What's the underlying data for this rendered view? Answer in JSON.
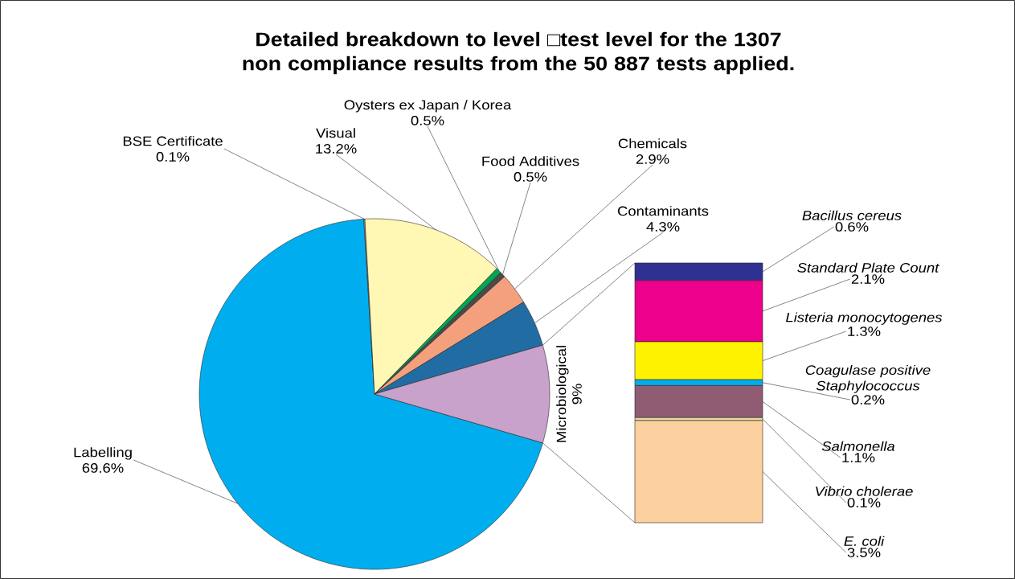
{
  "chart_data": [
    {
      "type": "pie",
      "title": "Detailed breakdown to level □test level for the 1307 non compliance results from the 50 887 tests applied.",
      "categories": [
        "Labelling",
        "BSE Certificate",
        "Visual",
        "Oysters ex Japan / Korea",
        "Food Additives",
        "Chemicals",
        "Contaminants",
        "Microbiological"
      ],
      "values": [
        69.6,
        0.1,
        13.2,
        0.5,
        0.5,
        2.9,
        4.3,
        9
      ],
      "value_labels": [
        "69.6%",
        "0.1%",
        "13.2%",
        "0.5%",
        "0.5%",
        "2.9%",
        "4.3%",
        "9%"
      ],
      "colors": [
        "#00aeef",
        "#a0a0a0",
        "#fff8b4",
        "#00a651",
        "#4a4a4a",
        "#f4a07c",
        "#226ca4",
        "#c8a2cb"
      ]
    },
    {
      "type": "bar",
      "stacked": true,
      "categories": [
        null
      ],
      "series": [
        {
          "name": "*E. coli*",
          "color": "#fdd09f",
          "values": [
            3.5
          ],
          "value_labels": [
            "3.5%"
          ]
        },
        {
          "name": "*Vibrio cholerae*",
          "color": "#e8dca0",
          "values": [
            0.1
          ],
          "value_labels": [
            "0.1%"
          ]
        },
        {
          "name": "*Salmonella*",
          "color": "#905c74",
          "values": [
            1.1
          ],
          "value_labels": [
            "1.1%"
          ]
        },
        {
          "name": "*Coagulase positive Staphylococcus*",
          "color": "#00aeef",
          "values": [
            0.2
          ],
          "value_labels": [
            "0.2%"
          ]
        },
        {
          "name": "*Listeria monocytogenes*",
          "color": "#fff200",
          "values": [
            1.3
          ],
          "value_labels": [
            "1.3%"
          ]
        },
        {
          "name": "*Standard Plate Count*",
          "color": "#ec008c",
          "values": [
            2.1
          ],
          "value_labels": [
            "2.1%"
          ]
        },
        {
          "name": "*Bacillus cereus*",
          "color": "#2e3192",
          "values": [
            0.6
          ],
          "value_labels": [
            "0.6%"
          ]
        }
      ]
    }
  ]
}
